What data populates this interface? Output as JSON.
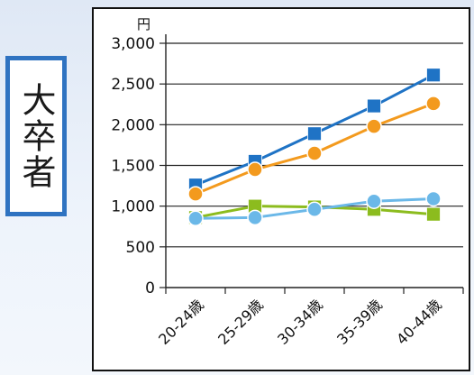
{
  "category_label": "大卒者",
  "chart_data": {
    "type": "line",
    "unit_label": "円",
    "categories": [
      "20-24歳",
      "25-29歳",
      "30-34歳",
      "35-39歳",
      "40-44歳"
    ],
    "ylim": [
      0,
      3000
    ],
    "yticks": [
      0,
      500,
      1000,
      1500,
      2000,
      2500,
      3000
    ],
    "ytick_labels": [
      "0",
      "500",
      "1,000",
      "1,500",
      "2,000",
      "2,500",
      "3,000"
    ],
    "grid": true,
    "series": [
      {
        "color": "#1f73c5",
        "marker": "square",
        "values": [
          1260,
          1550,
          1890,
          2230,
          2610
        ]
      },
      {
        "color": "#f39a1e",
        "marker": "circle",
        "values": [
          1150,
          1450,
          1650,
          1980,
          2260
        ]
      },
      {
        "color": "#8cbc1e",
        "marker": "square",
        "values": [
          860,
          1000,
          990,
          960,
          900
        ]
      },
      {
        "color": "#6bb8e8",
        "marker": "circle",
        "values": [
          850,
          860,
          960,
          1060,
          1090
        ]
      }
    ]
  }
}
